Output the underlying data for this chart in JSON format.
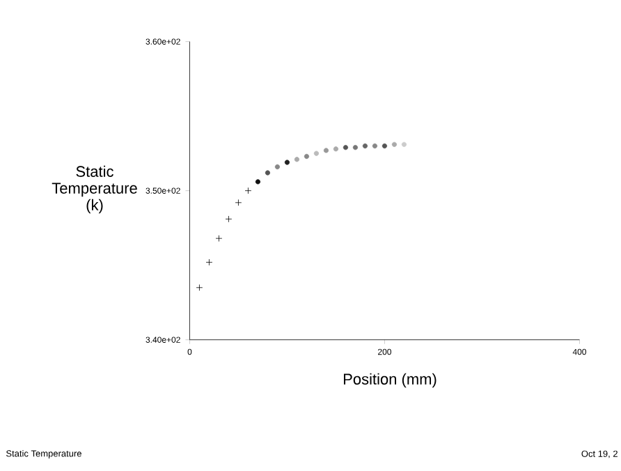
{
  "chart_data": {
    "type": "scatter",
    "xlabel": "Position (mm)",
    "ylabel": "Static Temperature (k)",
    "xlim": [
      0,
      400
    ],
    "xticks": [
      0,
      200,
      400
    ],
    "ylim": [
      340,
      360
    ],
    "yticks": [
      {
        "value": 340,
        "label": "3.40e+02"
      },
      {
        "value": 350,
        "label": "3.50e+02"
      },
      {
        "value": 360,
        "label": "3.60e+02"
      }
    ],
    "series": [
      {
        "color": "#000000",
        "marker": "cross",
        "x": [
          10,
          20,
          30,
          40,
          50,
          60
        ],
        "values": [
          343.5,
          345.2,
          346.8,
          348.1,
          349.2,
          350.0
        ]
      },
      {
        "marker": "circle",
        "x": [
          70,
          80,
          90,
          100,
          110,
          120,
          130,
          140,
          150,
          160,
          170,
          180,
          190,
          200,
          210,
          220
        ],
        "values": [
          350.6,
          351.2,
          351.6,
          351.9,
          352.1,
          352.3,
          352.5,
          352.7,
          352.8,
          352.9,
          352.9,
          353.0,
          353.0,
          353.0,
          353.1,
          353.1
        ],
        "colors": [
          "#111111",
          "#555555",
          "#888888",
          "#222222",
          "#aaaaaa",
          "#888888",
          "#bbbbbb",
          "#999999",
          "#aaaaaa",
          "#555555",
          "#777777",
          "#666666",
          "#888888",
          "#555555",
          "#aaaaaa",
          "#cccccc"
        ]
      }
    ],
    "annotations": [
      "Static Temperature",
      "Oct 19, 2"
    ]
  }
}
